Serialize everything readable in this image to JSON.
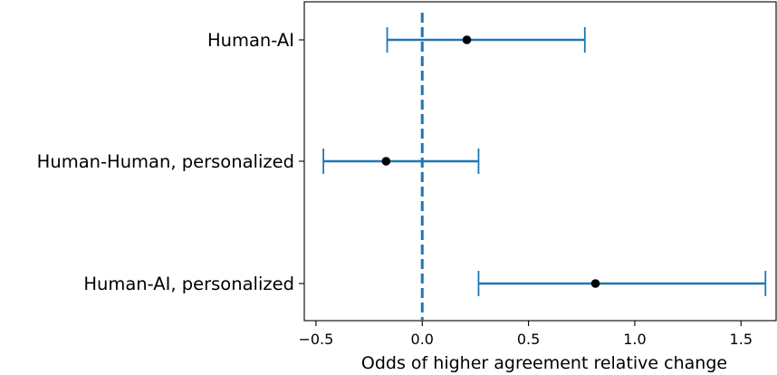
{
  "chart_data": {
    "type": "errorbar",
    "title": "",
    "xlabel": "Odds of higher agreement relative change",
    "ylabel": "",
    "xlim": [
      -0.555,
      1.665
    ],
    "xticks": [
      -0.5,
      0.0,
      0.5,
      1.0,
      1.5
    ],
    "xtick_labels": [
      "−0.5",
      "0.0",
      "0.5",
      "1.0",
      "1.5"
    ],
    "reference_line": {
      "x": 0,
      "style": "dashed",
      "color": "#1f77b4"
    },
    "grid": false,
    "legend": "none",
    "colors": {
      "interval": "#1f77b4",
      "point": "#000000"
    },
    "categories": [
      "Human-AI",
      "Human-Human, personalized",
      "Human-AI, personalized"
    ],
    "estimates": [
      0.21,
      -0.17,
      0.815
    ],
    "ci_lower": [
      -0.165,
      -0.465,
      0.265
    ],
    "ci_upper": [
      0.765,
      0.265,
      1.615
    ]
  }
}
